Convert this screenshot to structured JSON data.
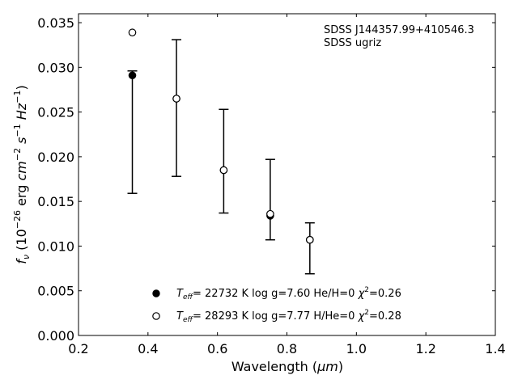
{
  "chart_data": {
    "type": "scatter",
    "xlabel_main": "Wavelength (",
    "xlabel_unit": "μm",
    "xlabel_close": ")",
    "ylabel_parts": {
      "f": "f",
      "nu": "ν",
      "open": " (10",
      "exp1": "−26",
      "erg": " erg ",
      "cm": "cm",
      "exp2": "−2",
      "s": " s",
      "exp3": "−1",
      "hz": " Hz",
      "exp4": "−1",
      "close": ")"
    },
    "xlim": [
      0.2,
      1.4
    ],
    "ylim": [
      0.0,
      0.036
    ],
    "xticks": [
      "0.2",
      "0.4",
      "0.6",
      "0.8",
      "1.0",
      "1.2",
      "1.4"
    ],
    "yticks": [
      "0.000",
      "0.005",
      "0.010",
      "0.015",
      "0.020",
      "0.025",
      "0.030",
      "0.035"
    ],
    "annotation": [
      "SDSS J144357.99+410546.3",
      "SDSS ugriz"
    ],
    "observed": [
      {
        "x": 0.355,
        "y": 0.0291,
        "ylow": 0.0159,
        "yhigh": 0.0296
      },
      {
        "x": 0.482,
        "y": 0.0265,
        "ylow": 0.0178,
        "yhigh": 0.0331
      },
      {
        "x": 0.618,
        "y": 0.0185,
        "ylow": 0.0137,
        "yhigh": 0.0253
      },
      {
        "x": 0.752,
        "y": 0.0135,
        "ylow": 0.0107,
        "yhigh": 0.0197
      },
      {
        "x": 0.866,
        "y": 0.0107,
        "ylow": 0.0069,
        "yhigh": 0.0126
      }
    ],
    "series": [
      {
        "marker": "filled-circle",
        "legend": {
          "T": "T",
          "sub": "eff",
          "rest": "= 22732 K  log g=7.60  He/H=0  ",
          "chi": "χ",
          "sup": "2",
          "end": "=0.26"
        },
        "x": [
          0.355,
          0.482,
          0.618,
          0.752,
          0.866
        ],
        "y": [
          0.0291,
          0.0265,
          0.0185,
          0.0134,
          0.0107
        ]
      },
      {
        "marker": "open-circle",
        "legend": {
          "T": "T",
          "sub": "eff",
          "rest": "= 28293 K  log g=7.77  H/He=0  ",
          "chi": "χ",
          "sup": "2",
          "end": "=0.28"
        },
        "x": [
          0.355,
          0.482,
          0.618,
          0.752,
          0.866
        ],
        "y": [
          0.0339,
          0.0265,
          0.0185,
          0.0136,
          0.0107
        ]
      }
    ]
  }
}
